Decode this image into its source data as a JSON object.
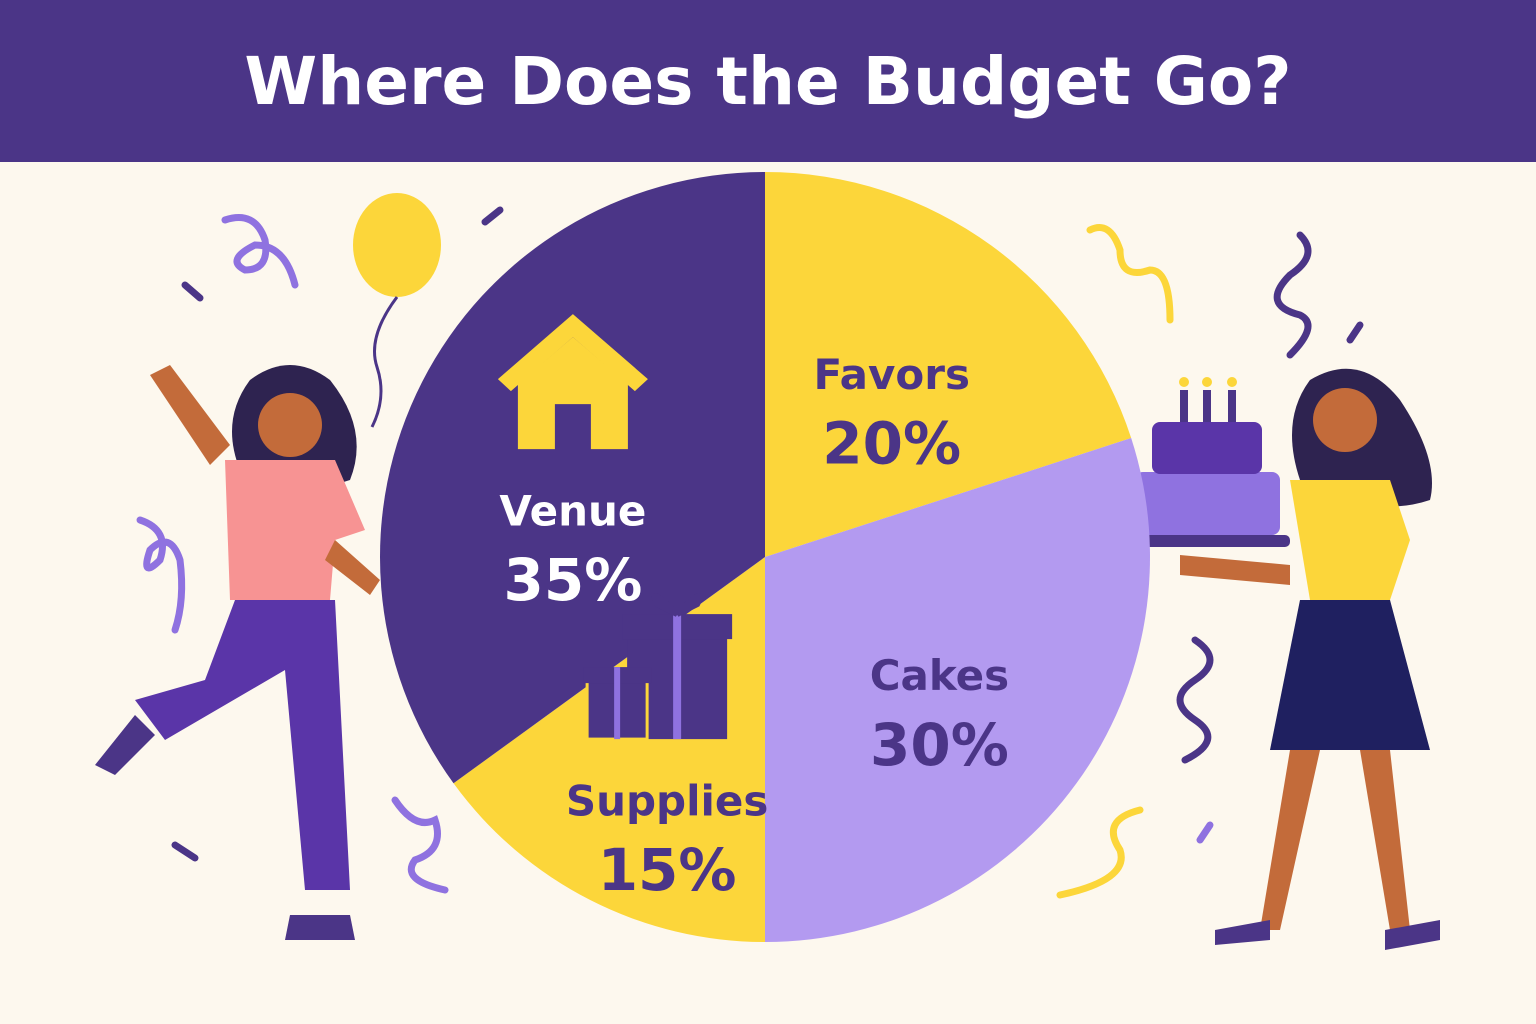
{
  "chart_data": {
    "type": "pie",
    "title": "Where Does the Budget Go?",
    "categories": [
      "Favors",
      "Cakes",
      "Supplies",
      "Venue"
    ],
    "values": [
      20,
      30,
      15,
      35
    ],
    "value_labels": [
      "20%",
      "30%",
      "15%",
      "35%"
    ],
    "colors": [
      "#fcd63a",
      "#b39af0",
      "#fcd63a",
      "#4b3587"
    ]
  }
}
